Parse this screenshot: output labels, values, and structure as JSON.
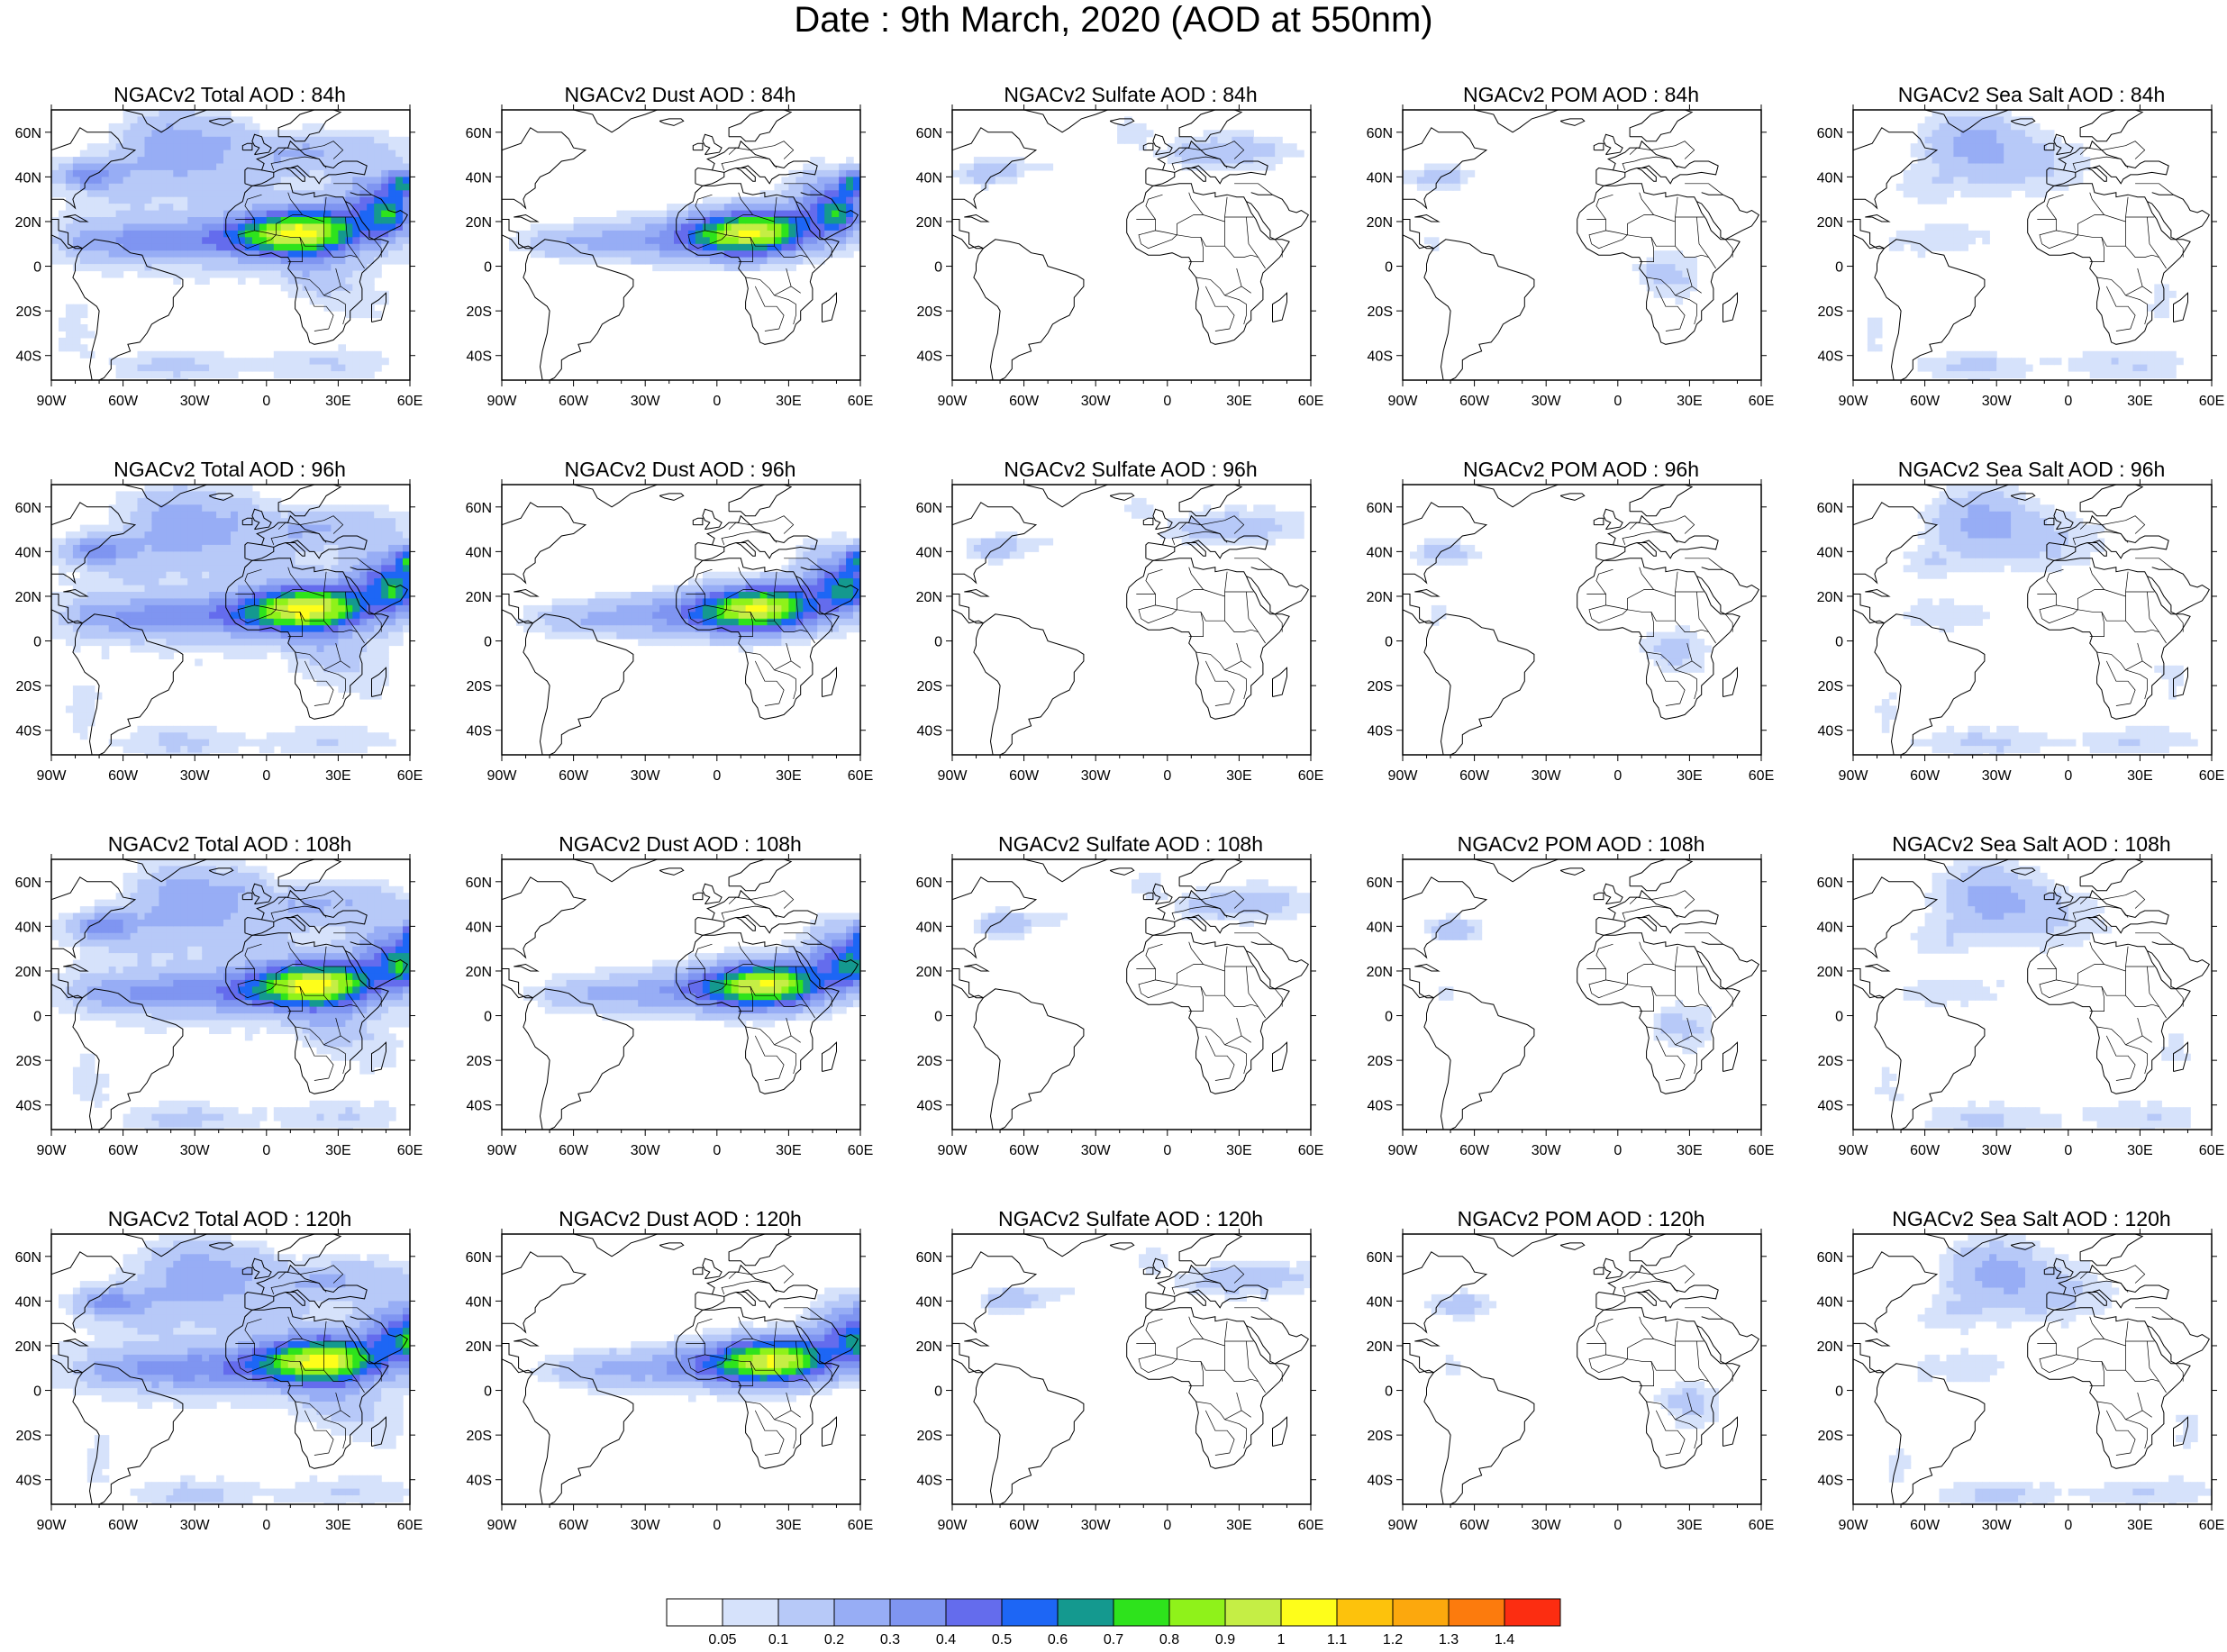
{
  "title": "Date : 9th March, 2020 (AOD at 550nm)",
  "lon_ticks": [
    "90W",
    "60W",
    "30W",
    "0",
    "30E",
    "60E"
  ],
  "lat_ticks": [
    "60N",
    "40N",
    "20N",
    "0",
    "20S",
    "40S"
  ],
  "panels": [
    {
      "title": "NGACv2 Total AOD : 84h",
      "field": "total"
    },
    {
      "title": "NGACv2 Dust AOD : 84h",
      "field": "dust"
    },
    {
      "title": "NGACv2 Sulfate AOD : 84h",
      "field": "sulfate"
    },
    {
      "title": "NGACv2 POM AOD : 84h",
      "field": "pom"
    },
    {
      "title": "NGACv2 Sea Salt AOD : 84h",
      "field": "seasalt"
    },
    {
      "title": "NGACv2 Total AOD : 96h",
      "field": "total"
    },
    {
      "title": "NGACv2 Dust AOD : 96h",
      "field": "dust"
    },
    {
      "title": "NGACv2 Sulfate AOD : 96h",
      "field": "sulfate"
    },
    {
      "title": "NGACv2 POM AOD : 96h",
      "field": "pom"
    },
    {
      "title": "NGACv2 Sea Salt AOD : 96h",
      "field": "seasalt"
    },
    {
      "title": "NGACv2 Total AOD : 108h",
      "field": "total"
    },
    {
      "title": "NGACv2 Dust AOD : 108h",
      "field": "dust"
    },
    {
      "title": "NGACv2 Sulfate AOD : 108h",
      "field": "sulfate"
    },
    {
      "title": "NGACv2 POM AOD : 108h",
      "field": "pom"
    },
    {
      "title": "NGACv2 Sea Salt AOD : 108h",
      "field": "seasalt"
    },
    {
      "title": "NGACv2 Total AOD : 120h",
      "field": "total"
    },
    {
      "title": "NGACv2 Dust AOD : 120h",
      "field": "dust"
    },
    {
      "title": "NGACv2 Sulfate AOD : 120h",
      "field": "sulfate"
    },
    {
      "title": "NGACv2 POM AOD : 120h",
      "field": "pom"
    },
    {
      "title": "NGACv2 Sea Salt  AOD : 120h",
      "field": "seasalt"
    }
  ],
  "colorbar": {
    "labels": [
      "0.05",
      "0.1",
      "0.2",
      "0.3",
      "0.4",
      "0.5",
      "0.6",
      "0.7",
      "0.8",
      "0.9",
      "1",
      "1.1",
      "1.2",
      "1.3",
      "1.4"
    ],
    "colors": [
      "#ffffff",
      "#d6e2fb",
      "#b7c9f8",
      "#97adf5",
      "#7f95f1",
      "#646ced",
      "#1d66f5",
      "#14998f",
      "#2ee31c",
      "#8ff21a",
      "#c5ee45",
      "#fefe1a",
      "#fdc20c",
      "#fca80d",
      "#fc7b0d",
      "#fc2d11"
    ]
  }
}
